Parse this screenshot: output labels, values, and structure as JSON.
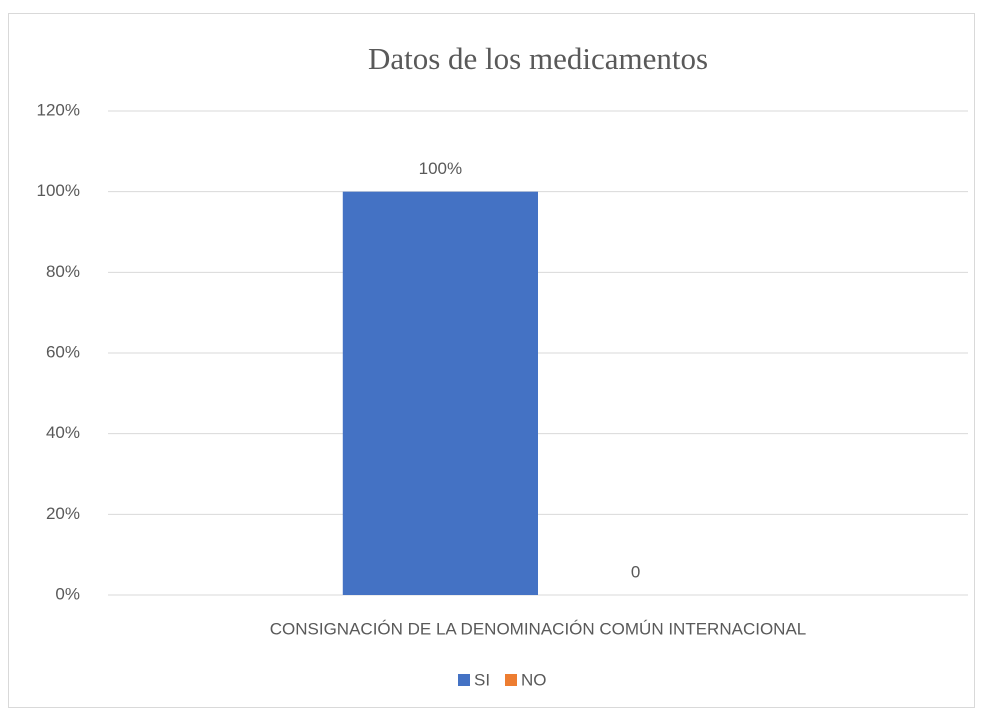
{
  "chart_data": {
    "type": "bar",
    "title": "Datos de los medicamentos",
    "categories": [
      "CONSIGNACIÓN DE LA DENOMINACIÓN COMÚN INTERNACIONAL"
    ],
    "series": [
      {
        "name": "SI",
        "color": "#4472c4",
        "values": [
          100
        ],
        "value_labels": [
          "100%"
        ]
      },
      {
        "name": "NO",
        "color": "#ed7d31",
        "values": [
          0
        ]
      }
    ],
    "ylim": [
      0,
      120
    ],
    "yticks": [
      {
        "value": 0,
        "label": "0%"
      },
      {
        "value": 20,
        "label": "20%"
      },
      {
        "value": 40,
        "label": "40%"
      },
      {
        "value": 60,
        "label": "60%"
      },
      {
        "value": 80,
        "label": "80%"
      },
      {
        "value": 100,
        "label": "100%"
      },
      {
        "value": 120,
        "label": "120%"
      }
    ],
    "grid": true,
    "legend": "bottom"
  }
}
